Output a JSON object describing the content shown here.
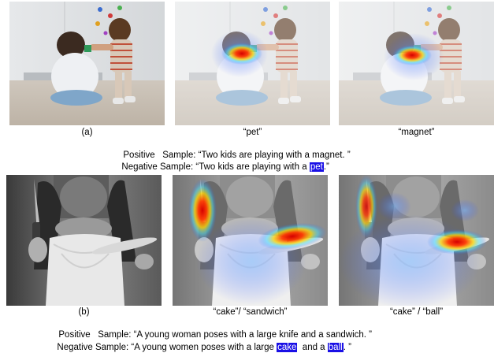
{
  "top": {
    "labels": [
      "(a)",
      "“pet”",
      "“magnet”"
    ],
    "positive": {
      "prefix": "Positive   Sample: ",
      "text": "“Two kids are playing with a magnet. ”"
    },
    "negative": {
      "prefix": "Negative Sample: ",
      "before": "“Two kids are playing with a ",
      "highlight": "pet",
      "after": ".”"
    }
  },
  "bottom": {
    "labels": [
      "(b)",
      "“cake”/ “sandwich”",
      "“cake” / “ball”"
    ],
    "positive": {
      "prefix": "Positive   Sample: ",
      "text": "“A young woman poses with a large knife and a sandwich. ”"
    },
    "negative": {
      "prefix": "Negative Sample: ",
      "before": "“A young women poses with a large ",
      "highlight1": "cake",
      "middle": "  and a ",
      "highlight2": "ball",
      "after": ". ”"
    }
  },
  "colors": {
    "highlight": "#1a10e6"
  }
}
